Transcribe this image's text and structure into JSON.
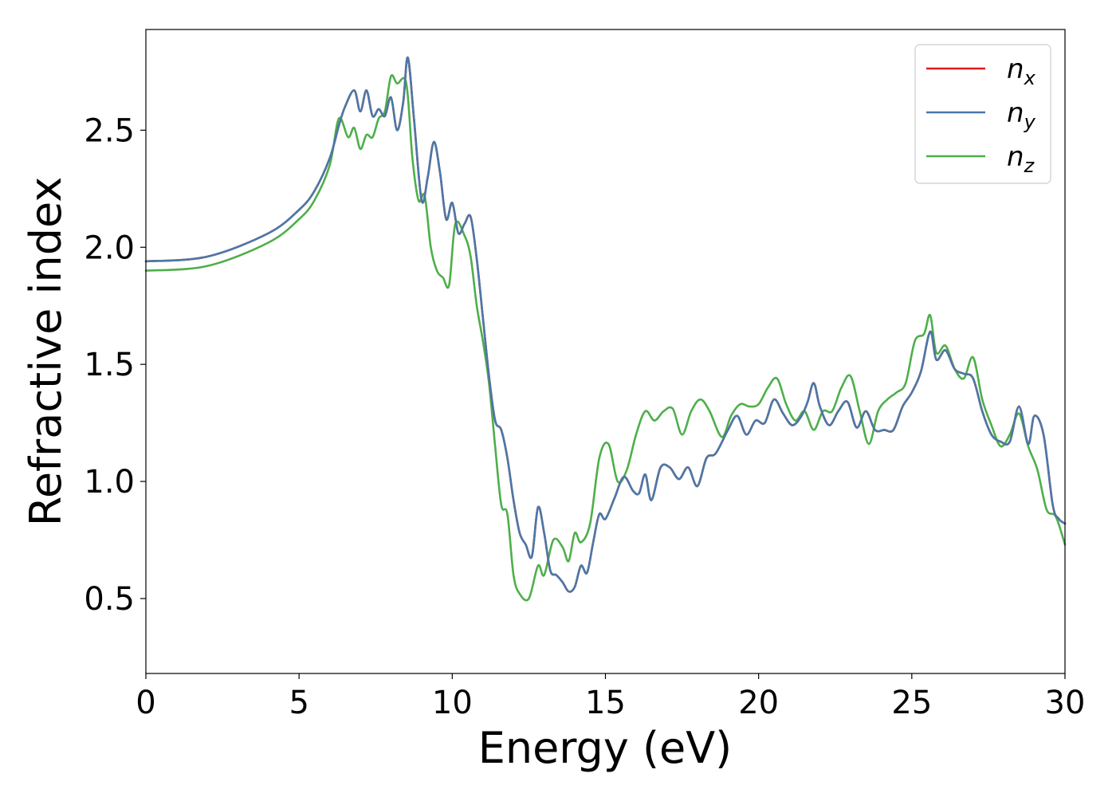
{
  "chart_data": {
    "type": "line",
    "xlabel": "Energy (eV)",
    "ylabel": "Refractive index",
    "xlim": [
      0,
      30
    ],
    "ylim": [
      0.18,
      2.93
    ],
    "xticks": [
      {
        "value": 0,
        "label": "0"
      },
      {
        "value": 5,
        "label": "5"
      },
      {
        "value": 10,
        "label": "10"
      },
      {
        "value": 15,
        "label": "15"
      },
      {
        "value": 20,
        "label": "20"
      },
      {
        "value": 25,
        "label": "25"
      },
      {
        "value": 30,
        "label": "30"
      }
    ],
    "yticks": [
      {
        "value": 0.5,
        "label": "0.5"
      },
      {
        "value": 1.0,
        "label": "1.0"
      },
      {
        "value": 1.5,
        "label": "1.5"
      },
      {
        "value": 2.0,
        "label": "2.0"
      },
      {
        "value": 2.5,
        "label": "2.5"
      }
    ],
    "grid": false,
    "legend_position": "top-right",
    "series": [
      {
        "name": "n",
        "subscript": "x",
        "color": "#e41a1c",
        "points": [
          [
            0,
            1.94
          ],
          [
            2,
            1.96
          ],
          [
            4,
            2.06
          ],
          [
            5,
            2.16
          ],
          [
            5.5,
            2.24
          ],
          [
            6,
            2.38
          ],
          [
            6.3,
            2.52
          ],
          [
            6.5,
            2.6
          ],
          [
            6.8,
            2.67
          ],
          [
            7.0,
            2.58
          ],
          [
            7.2,
            2.67
          ],
          [
            7.4,
            2.56
          ],
          [
            7.6,
            2.59
          ],
          [
            7.8,
            2.56
          ],
          [
            8.0,
            2.64
          ],
          [
            8.2,
            2.5
          ],
          [
            8.4,
            2.62
          ],
          [
            8.55,
            2.81
          ],
          [
            8.75,
            2.55
          ],
          [
            9.0,
            2.2
          ],
          [
            9.2,
            2.3
          ],
          [
            9.4,
            2.45
          ],
          [
            9.6,
            2.32
          ],
          [
            9.8,
            2.12
          ],
          [
            10.0,
            2.19
          ],
          [
            10.2,
            2.06
          ],
          [
            10.4,
            2.1
          ],
          [
            10.6,
            2.13
          ],
          [
            10.8,
            1.95
          ],
          [
            11.0,
            1.7
          ],
          [
            11.2,
            1.45
          ],
          [
            11.4,
            1.26
          ],
          [
            11.6,
            1.22
          ],
          [
            11.8,
            1.1
          ],
          [
            12.0,
            0.92
          ],
          [
            12.2,
            0.78
          ],
          [
            12.4,
            0.73
          ],
          [
            12.6,
            0.68
          ],
          [
            12.8,
            0.89
          ],
          [
            13.0,
            0.78
          ],
          [
            13.2,
            0.62
          ],
          [
            13.4,
            0.6
          ],
          [
            13.6,
            0.57
          ],
          [
            13.8,
            0.53
          ],
          [
            14.0,
            0.55
          ],
          [
            14.2,
            0.64
          ],
          [
            14.4,
            0.61
          ],
          [
            14.6,
            0.74
          ],
          [
            14.8,
            0.86
          ],
          [
            15.0,
            0.84
          ],
          [
            15.3,
            0.93
          ],
          [
            15.6,
            1.02
          ],
          [
            15.9,
            0.96
          ],
          [
            16.1,
            0.95
          ],
          [
            16.3,
            1.03
          ],
          [
            16.5,
            0.92
          ],
          [
            16.8,
            1.06
          ],
          [
            17.1,
            1.06
          ],
          [
            17.4,
            1.01
          ],
          [
            17.7,
            1.06
          ],
          [
            18.0,
            0.98
          ],
          [
            18.3,
            1.1
          ],
          [
            18.6,
            1.12
          ],
          [
            19.0,
            1.22
          ],
          [
            19.3,
            1.28
          ],
          [
            19.6,
            1.2
          ],
          [
            19.9,
            1.26
          ],
          [
            20.2,
            1.25
          ],
          [
            20.5,
            1.35
          ],
          [
            20.8,
            1.29
          ],
          [
            21.1,
            1.24
          ],
          [
            21.4,
            1.28
          ],
          [
            21.6,
            1.34
          ],
          [
            21.8,
            1.42
          ],
          [
            22.0,
            1.32
          ],
          [
            22.3,
            1.24
          ],
          [
            22.6,
            1.3
          ],
          [
            22.9,
            1.34
          ],
          [
            23.2,
            1.23
          ],
          [
            23.5,
            1.3
          ],
          [
            23.8,
            1.22
          ],
          [
            24.1,
            1.22
          ],
          [
            24.4,
            1.22
          ],
          [
            24.7,
            1.32
          ],
          [
            25.0,
            1.38
          ],
          [
            25.3,
            1.47
          ],
          [
            25.6,
            1.64
          ],
          [
            25.8,
            1.52
          ],
          [
            26.1,
            1.56
          ],
          [
            26.4,
            1.48
          ],
          [
            26.7,
            1.46
          ],
          [
            27.0,
            1.44
          ],
          [
            27.3,
            1.3
          ],
          [
            27.6,
            1.2
          ],
          [
            27.9,
            1.17
          ],
          [
            28.2,
            1.17
          ],
          [
            28.5,
            1.32
          ],
          [
            28.8,
            1.16
          ],
          [
            29.0,
            1.28
          ],
          [
            29.3,
            1.2
          ],
          [
            29.6,
            0.9
          ],
          [
            29.8,
            0.84
          ],
          [
            30.0,
            0.82
          ]
        ]
      },
      {
        "name": "n",
        "subscript": "y",
        "color": "#4a78a8",
        "points": [
          [
            0,
            1.94
          ],
          [
            2,
            1.96
          ],
          [
            4,
            2.06
          ],
          [
            5,
            2.16
          ],
          [
            5.5,
            2.24
          ],
          [
            6,
            2.38
          ],
          [
            6.3,
            2.52
          ],
          [
            6.5,
            2.6
          ],
          [
            6.8,
            2.67
          ],
          [
            7.0,
            2.58
          ],
          [
            7.2,
            2.67
          ],
          [
            7.4,
            2.56
          ],
          [
            7.6,
            2.59
          ],
          [
            7.8,
            2.56
          ],
          [
            8.0,
            2.64
          ],
          [
            8.2,
            2.5
          ],
          [
            8.4,
            2.62
          ],
          [
            8.55,
            2.81
          ],
          [
            8.75,
            2.55
          ],
          [
            9.0,
            2.2
          ],
          [
            9.2,
            2.3
          ],
          [
            9.4,
            2.45
          ],
          [
            9.6,
            2.32
          ],
          [
            9.8,
            2.12
          ],
          [
            10.0,
            2.19
          ],
          [
            10.2,
            2.06
          ],
          [
            10.4,
            2.1
          ],
          [
            10.6,
            2.13
          ],
          [
            10.8,
            1.95
          ],
          [
            11.0,
            1.7
          ],
          [
            11.2,
            1.45
          ],
          [
            11.4,
            1.26
          ],
          [
            11.6,
            1.22
          ],
          [
            11.8,
            1.1
          ],
          [
            12.0,
            0.92
          ],
          [
            12.2,
            0.78
          ],
          [
            12.4,
            0.73
          ],
          [
            12.6,
            0.68
          ],
          [
            12.8,
            0.89
          ],
          [
            13.0,
            0.78
          ],
          [
            13.2,
            0.62
          ],
          [
            13.4,
            0.6
          ],
          [
            13.6,
            0.57
          ],
          [
            13.8,
            0.53
          ],
          [
            14.0,
            0.55
          ],
          [
            14.2,
            0.64
          ],
          [
            14.4,
            0.61
          ],
          [
            14.6,
            0.74
          ],
          [
            14.8,
            0.86
          ],
          [
            15.0,
            0.84
          ],
          [
            15.3,
            0.93
          ],
          [
            15.6,
            1.02
          ],
          [
            15.9,
            0.96
          ],
          [
            16.1,
            0.95
          ],
          [
            16.3,
            1.03
          ],
          [
            16.5,
            0.92
          ],
          [
            16.8,
            1.06
          ],
          [
            17.1,
            1.06
          ],
          [
            17.4,
            1.01
          ],
          [
            17.7,
            1.06
          ],
          [
            18.0,
            0.98
          ],
          [
            18.3,
            1.1
          ],
          [
            18.6,
            1.12
          ],
          [
            19.0,
            1.22
          ],
          [
            19.3,
            1.28
          ],
          [
            19.6,
            1.2
          ],
          [
            19.9,
            1.26
          ],
          [
            20.2,
            1.25
          ],
          [
            20.5,
            1.35
          ],
          [
            20.8,
            1.29
          ],
          [
            21.1,
            1.24
          ],
          [
            21.4,
            1.28
          ],
          [
            21.6,
            1.34
          ],
          [
            21.8,
            1.42
          ],
          [
            22.0,
            1.32
          ],
          [
            22.3,
            1.24
          ],
          [
            22.6,
            1.3
          ],
          [
            22.9,
            1.34
          ],
          [
            23.2,
            1.23
          ],
          [
            23.5,
            1.3
          ],
          [
            23.8,
            1.22
          ],
          [
            24.1,
            1.22
          ],
          [
            24.4,
            1.22
          ],
          [
            24.7,
            1.32
          ],
          [
            25.0,
            1.38
          ],
          [
            25.3,
            1.47
          ],
          [
            25.6,
            1.64
          ],
          [
            25.8,
            1.52
          ],
          [
            26.1,
            1.56
          ],
          [
            26.4,
            1.48
          ],
          [
            26.7,
            1.46
          ],
          [
            27.0,
            1.44
          ],
          [
            27.3,
            1.3
          ],
          [
            27.6,
            1.2
          ],
          [
            27.9,
            1.17
          ],
          [
            28.2,
            1.17
          ],
          [
            28.5,
            1.32
          ],
          [
            28.8,
            1.16
          ],
          [
            29.0,
            1.28
          ],
          [
            29.3,
            1.2
          ],
          [
            29.6,
            0.9
          ],
          [
            29.8,
            0.84
          ],
          [
            30.0,
            0.82
          ]
        ]
      },
      {
        "name": "n",
        "subscript": "z",
        "color": "#4daf4a",
        "points": [
          [
            0,
            1.9
          ],
          [
            2,
            1.92
          ],
          [
            4,
            2.02
          ],
          [
            5,
            2.12
          ],
          [
            5.5,
            2.2
          ],
          [
            6,
            2.35
          ],
          [
            6.3,
            2.55
          ],
          [
            6.6,
            2.47
          ],
          [
            6.8,
            2.51
          ],
          [
            7.0,
            2.42
          ],
          [
            7.2,
            2.48
          ],
          [
            7.4,
            2.47
          ],
          [
            7.6,
            2.55
          ],
          [
            7.8,
            2.58
          ],
          [
            8.0,
            2.73
          ],
          [
            8.2,
            2.7
          ],
          [
            8.5,
            2.7
          ],
          [
            8.7,
            2.38
          ],
          [
            8.9,
            2.2
          ],
          [
            9.1,
            2.22
          ],
          [
            9.3,
            2.0
          ],
          [
            9.5,
            1.9
          ],
          [
            9.7,
            1.87
          ],
          [
            9.9,
            1.84
          ],
          [
            10.1,
            2.1
          ],
          [
            10.4,
            2.05
          ],
          [
            10.6,
            1.96
          ],
          [
            10.8,
            1.75
          ],
          [
            11.0,
            1.6
          ],
          [
            11.2,
            1.42
          ],
          [
            11.4,
            1.15
          ],
          [
            11.6,
            0.9
          ],
          [
            11.8,
            0.86
          ],
          [
            12.0,
            0.6
          ],
          [
            12.2,
            0.52
          ],
          [
            12.5,
            0.5
          ],
          [
            12.8,
            0.64
          ],
          [
            13.0,
            0.6
          ],
          [
            13.3,
            0.75
          ],
          [
            13.6,
            0.72
          ],
          [
            13.8,
            0.66
          ],
          [
            14.0,
            0.78
          ],
          [
            14.2,
            0.74
          ],
          [
            14.5,
            0.82
          ],
          [
            14.8,
            1.1
          ],
          [
            15.1,
            1.16
          ],
          [
            15.4,
            1.0
          ],
          [
            15.7,
            1.05
          ],
          [
            16.0,
            1.2
          ],
          [
            16.3,
            1.3
          ],
          [
            16.6,
            1.26
          ],
          [
            16.9,
            1.3
          ],
          [
            17.2,
            1.31
          ],
          [
            17.5,
            1.2
          ],
          [
            17.8,
            1.3
          ],
          [
            18.1,
            1.35
          ],
          [
            18.4,
            1.3
          ],
          [
            18.8,
            1.19
          ],
          [
            19.1,
            1.28
          ],
          [
            19.4,
            1.33
          ],
          [
            19.7,
            1.32
          ],
          [
            20.0,
            1.33
          ],
          [
            20.3,
            1.4
          ],
          [
            20.6,
            1.44
          ],
          [
            20.9,
            1.33
          ],
          [
            21.2,
            1.26
          ],
          [
            21.5,
            1.3
          ],
          [
            21.8,
            1.22
          ],
          [
            22.1,
            1.3
          ],
          [
            22.4,
            1.3
          ],
          [
            22.7,
            1.4
          ],
          [
            23.0,
            1.45
          ],
          [
            23.3,
            1.3
          ],
          [
            23.6,
            1.16
          ],
          [
            23.9,
            1.3
          ],
          [
            24.2,
            1.35
          ],
          [
            24.5,
            1.38
          ],
          [
            24.8,
            1.42
          ],
          [
            25.1,
            1.6
          ],
          [
            25.4,
            1.63
          ],
          [
            25.6,
            1.71
          ],
          [
            25.8,
            1.55
          ],
          [
            26.1,
            1.58
          ],
          [
            26.4,
            1.48
          ],
          [
            26.7,
            1.44
          ],
          [
            27.0,
            1.53
          ],
          [
            27.3,
            1.35
          ],
          [
            27.6,
            1.24
          ],
          [
            27.9,
            1.15
          ],
          [
            28.2,
            1.2
          ],
          [
            28.5,
            1.29
          ],
          [
            28.8,
            1.15
          ],
          [
            29.1,
            1.05
          ],
          [
            29.4,
            0.88
          ],
          [
            29.7,
            0.85
          ],
          [
            30.0,
            0.73
          ]
        ]
      }
    ]
  }
}
